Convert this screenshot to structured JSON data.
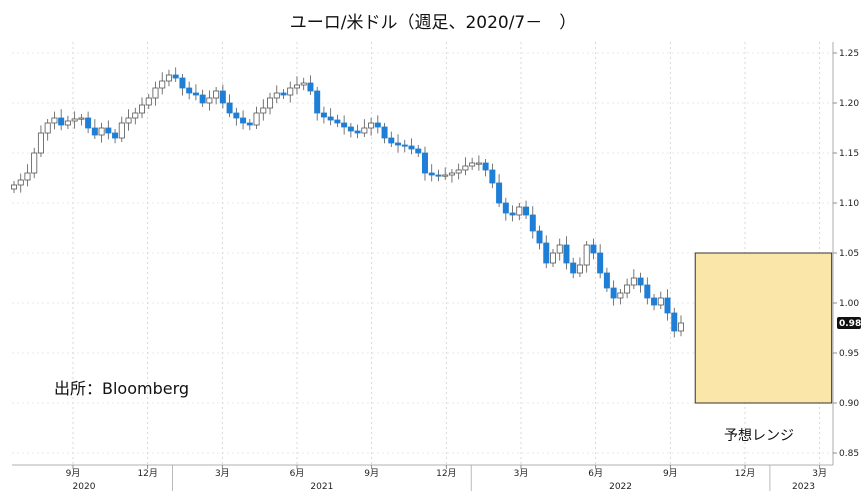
{
  "chart_data": {
    "type": "candlestick",
    "title": "ユーロ/米ドル（週足、2020/7－　）",
    "source_note": "出所：Bloomberg",
    "y_ticks": [
      "1.25",
      "1.20",
      "1.15",
      "1.10",
      "1.05",
      "1.00",
      "0.95",
      "0.90",
      "0.85"
    ],
    "y_tick_values": [
      1.25,
      1.2,
      1.15,
      1.1,
      1.05,
      1.0,
      0.95,
      0.9,
      0.85
    ],
    "ylim": [
      0.83,
      1.26
    ],
    "last_value_label": "0.98",
    "last_value": 0.98,
    "x_ticks": [
      "9月",
      "12月",
      "3月",
      "6月",
      "9月",
      "12月",
      "3月",
      "6月",
      "9月",
      "12月",
      "3月"
    ],
    "x_tick_dates": [
      "2020-09",
      "2020-12",
      "2021-03",
      "2021-06",
      "2021-09",
      "2021-12",
      "2022-03",
      "2022-06",
      "2022-09",
      "2022-12",
      "2023-03"
    ],
    "years": [
      "2020",
      "2021",
      "2022",
      "2023"
    ],
    "forecast_range": {
      "label": "予想レンジ",
      "low": 0.9,
      "high": 1.05,
      "from": "2022-10",
      "to": "2023-03"
    },
    "up_color": "#ffffff",
    "down_color": "#1f7fd6",
    "band_fill": "#fbe6a9",
    "band_stroke": "#333333",
    "closes": [
      1.118,
      1.123,
      1.13,
      1.15,
      1.17,
      1.18,
      1.185,
      1.178,
      1.182,
      1.184,
      1.185,
      1.175,
      1.168,
      1.175,
      1.17,
      1.165,
      1.18,
      1.185,
      1.19,
      1.198,
      1.205,
      1.215,
      1.222,
      1.228,
      1.225,
      1.215,
      1.21,
      1.208,
      1.2,
      1.205,
      1.212,
      1.2,
      1.19,
      1.185,
      1.18,
      1.178,
      1.19,
      1.195,
      1.205,
      1.21,
      1.208,
      1.215,
      1.218,
      1.22,
      1.212,
      1.19,
      1.186,
      1.183,
      1.18,
      1.176,
      1.172,
      1.17,
      1.175,
      1.18,
      1.176,
      1.165,
      1.16,
      1.158,
      1.157,
      1.154,
      1.15,
      1.13,
      1.128,
      1.127,
      1.128,
      1.13,
      1.133,
      1.137,
      1.14,
      1.14,
      1.133,
      1.12,
      1.1,
      1.09,
      1.088,
      1.096,
      1.088,
      1.072,
      1.06,
      1.04,
      1.05,
      1.058,
      1.04,
      1.03,
      1.038,
      1.058,
      1.05,
      1.03,
      1.015,
      1.005,
      1.01,
      1.018,
      1.025,
      1.018,
      1.005,
      0.998,
      1.005,
      0.99,
      0.972,
      0.98
    ]
  }
}
